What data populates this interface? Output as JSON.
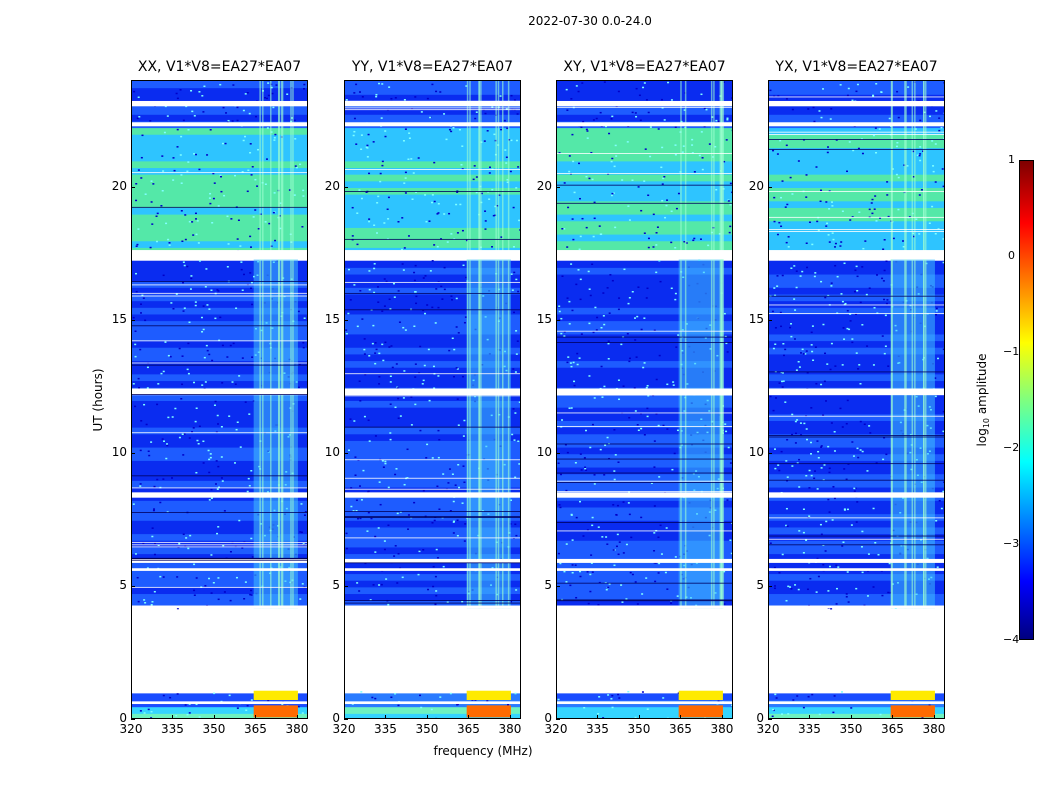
{
  "title": "2022-07-30 0.0-24.0",
  "chart_data": {
    "type": "heatmap",
    "xlabel": "frequency (MHz)",
    "ylabel": "UT (hours)",
    "xlim": [
      320,
      384
    ],
    "ylim": [
      0,
      24
    ],
    "x_ticks": [
      "320",
      "335",
      "350",
      "365",
      "380"
    ],
    "y_ticks": [
      "0",
      "5",
      "10",
      "15",
      "20"
    ],
    "panels": [
      {
        "title": "XX, V1*V8=EA27*EA07"
      },
      {
        "title": "YY, V1*V8=EA27*EA07"
      },
      {
        "title": "XY, V1*V8=EA27*EA07"
      },
      {
        "title": "YX, V1*V8=EA27*EA07"
      }
    ],
    "colorbar": {
      "label_main": "log",
      "label_sub": "10",
      "label_rest": " amplitude",
      "range": [
        -4,
        1
      ],
      "ticks": [
        "1",
        "0",
        "−1",
        "−2",
        "−3",
        "−4"
      ],
      "colormap": "jet"
    },
    "rfi_band_mhz": [
      364,
      380
    ],
    "gap_hours": [
      [
        1.1,
        4.2
      ],
      [
        17.3,
        17.6
      ],
      [
        12.2,
        12.4
      ],
      [
        8.3,
        8.4
      ]
    ]
  }
}
